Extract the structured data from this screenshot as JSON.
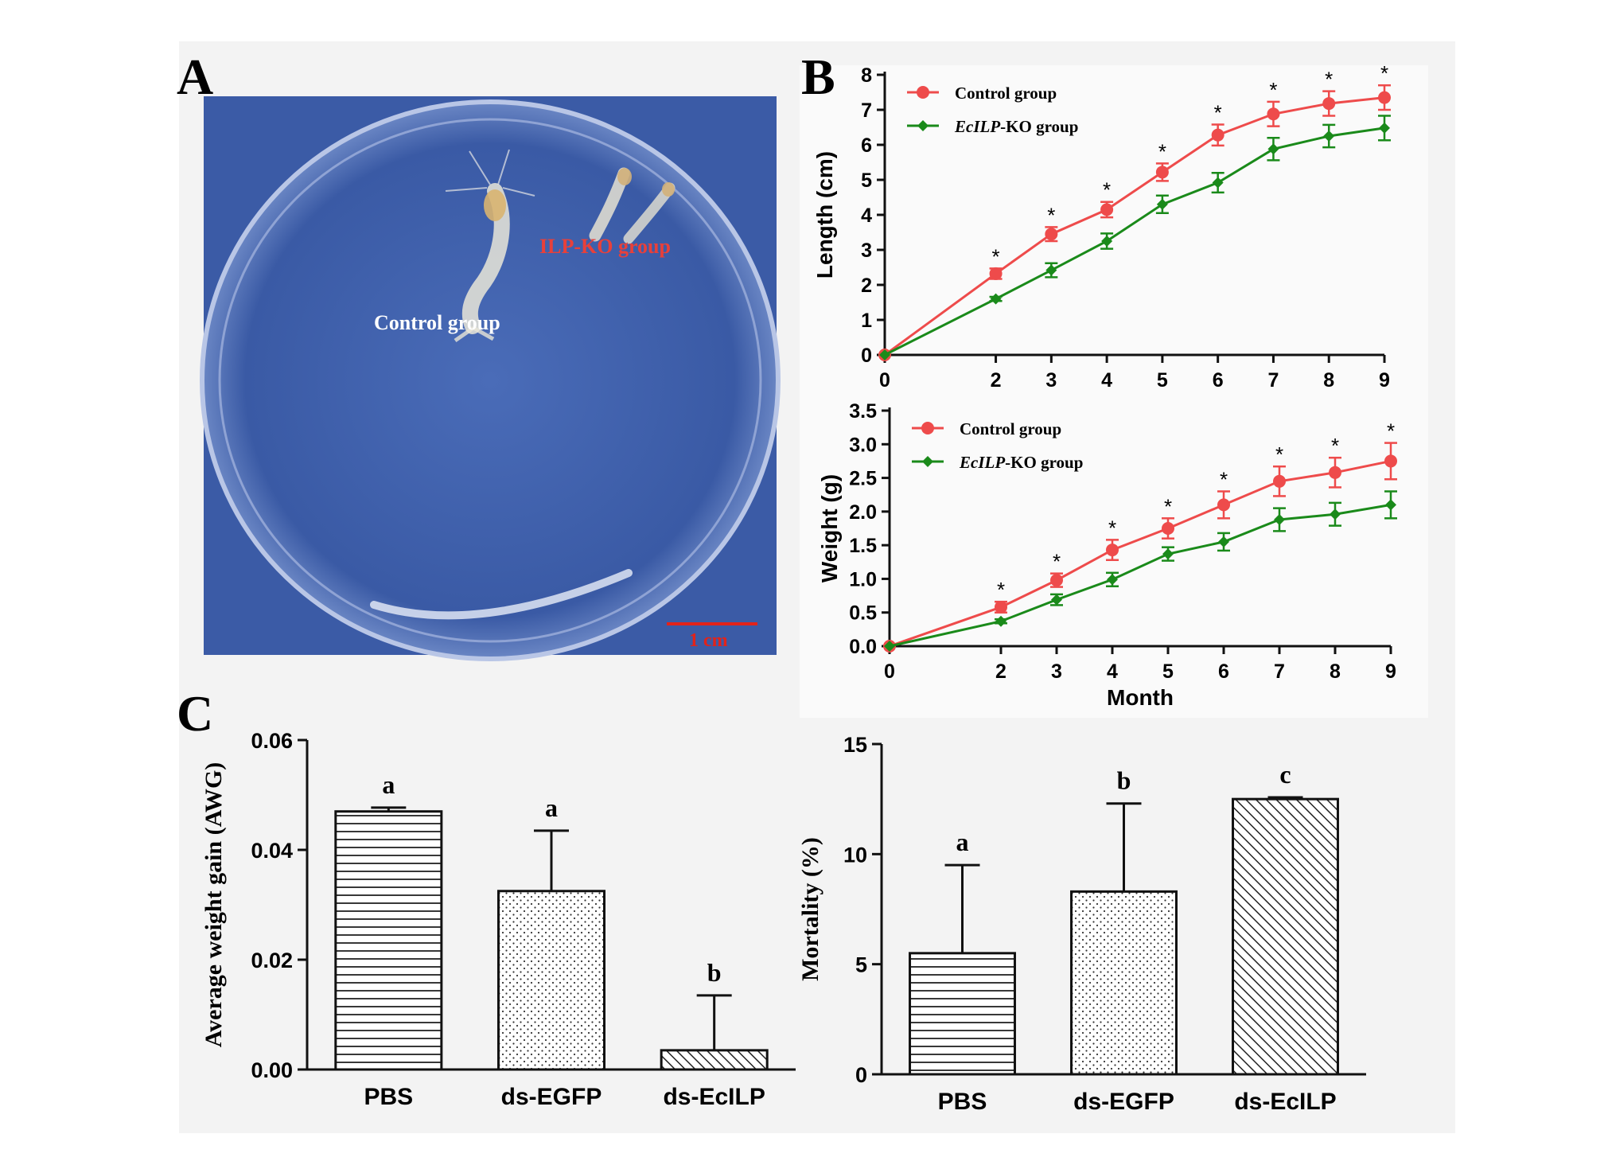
{
  "panels": {
    "a": {
      "letter": "A",
      "photo_labels": {
        "control": "Control group",
        "ko": "ILP-KO group",
        "scale": "1 cm"
      }
    },
    "b": {
      "letter": "B"
    },
    "c": {
      "letter": "C"
    }
  },
  "colors": {
    "control": "#ee4b4b",
    "ko": "#1a8a1a",
    "plate_bg": "#3c5ea8",
    "panel_bg": "#f5f5f5"
  },
  "chart_data": [
    {
      "id": "length",
      "type": "line",
      "x": [
        0,
        2,
        3,
        4,
        5,
        6,
        7,
        8,
        9
      ],
      "xticks": [
        "0",
        "2",
        "3",
        "4",
        "5",
        "6",
        "7",
        "8",
        "9"
      ],
      "xlabel": "",
      "ylabel": "Length (cm)",
      "ylim": [
        0,
        8
      ],
      "yticks": [
        "0",
        "1",
        "2",
        "3",
        "4",
        "5",
        "6",
        "7",
        "8"
      ],
      "legend_position": "top-left",
      "series": [
        {
          "name": "Control group",
          "name_italic": "",
          "values": [
            0,
            2.32,
            3.45,
            4.15,
            5.22,
            6.28,
            6.88,
            7.18,
            7.35
          ],
          "errors": [
            0,
            0.15,
            0.2,
            0.22,
            0.25,
            0.3,
            0.35,
            0.35,
            0.35
          ]
        },
        {
          "name": "-KO group",
          "name_italic": "EcILP",
          "values": [
            0,
            1.6,
            2.42,
            3.25,
            4.3,
            4.92,
            5.88,
            6.25,
            6.48
          ],
          "errors": [
            0,
            0.06,
            0.2,
            0.22,
            0.25,
            0.28,
            0.32,
            0.32,
            0.35
          ]
        }
      ],
      "markers": [
        "",
        "*",
        "*",
        "*",
        "*",
        "*",
        "*",
        "*",
        "*"
      ]
    },
    {
      "id": "weight",
      "type": "line",
      "x": [
        0,
        2,
        3,
        4,
        5,
        6,
        7,
        8,
        9
      ],
      "xticks": [
        "0",
        "2",
        "3",
        "4",
        "5",
        "6",
        "7",
        "8",
        "9"
      ],
      "xlabel": "Month",
      "ylabel": "Weight (g)",
      "ylim": [
        0,
        3.5
      ],
      "yticks": [
        "0.0",
        "0.5",
        "1.0",
        "1.5",
        "2.0",
        "2.5",
        "3.0",
        "3.5"
      ],
      "legend_position": "top-left",
      "series": [
        {
          "name": "Control group",
          "name_italic": "",
          "values": [
            0,
            0.58,
            0.98,
            1.43,
            1.75,
            2.1,
            2.45,
            2.58,
            2.75
          ],
          "errors": [
            0,
            0.08,
            0.1,
            0.15,
            0.15,
            0.2,
            0.22,
            0.22,
            0.27
          ]
        },
        {
          "name": "-KO group",
          "name_italic": "EcILP",
          "values": [
            0,
            0.37,
            0.69,
            0.99,
            1.37,
            1.55,
            1.88,
            1.96,
            2.1
          ],
          "errors": [
            0,
            0.03,
            0.08,
            0.1,
            0.1,
            0.13,
            0.17,
            0.17,
            0.2
          ]
        }
      ],
      "markers": [
        "",
        "*",
        "*",
        "*",
        "*",
        "*",
        "*",
        "*",
        "*"
      ]
    },
    {
      "id": "awg",
      "type": "bar",
      "categories": [
        "PBS",
        "ds-EGFP",
        "ds-EcILP"
      ],
      "values": [
        0.047,
        0.0325,
        0.0035
      ],
      "errors": [
        0.0007,
        0.011,
        0.01
      ],
      "letters": [
        "a",
        "a",
        "b"
      ],
      "patterns": [
        "hlines",
        "dots",
        "hatch"
      ],
      "ylabel": "Average weight gain (AWG)",
      "ylim": [
        0,
        0.06
      ],
      "yticks": [
        "0.00",
        "0.02",
        "0.04",
        "0.06"
      ]
    },
    {
      "id": "mortality",
      "type": "bar",
      "categories": [
        "PBS",
        "ds-EGFP",
        "ds-EcILP"
      ],
      "values": [
        5.5,
        8.3,
        12.5
      ],
      "errors": [
        4.0,
        4.0,
        0.08
      ],
      "letters": [
        "a",
        "b",
        "c"
      ],
      "patterns": [
        "hlines",
        "dots",
        "hatch"
      ],
      "ylabel": "Mortality (%)",
      "ylim": [
        0,
        15
      ],
      "yticks": [
        "0",
        "5",
        "10",
        "15"
      ]
    }
  ]
}
